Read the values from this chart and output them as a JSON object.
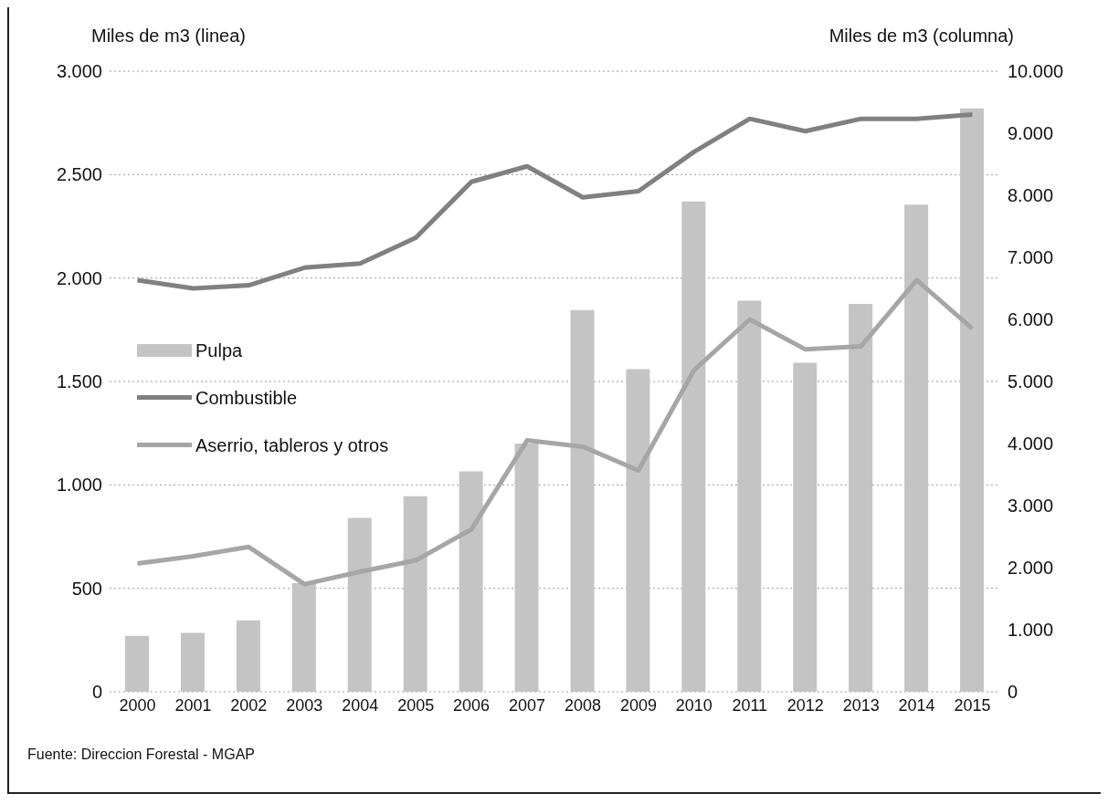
{
  "chart_data": {
    "type": "bar",
    "ylabel": "Miles de m3 (linea)",
    "y2label": "Miles de m3 (columna)",
    "categories": [
      "2000",
      "2001",
      "2002",
      "2003",
      "2004",
      "2005",
      "2006",
      "2007",
      "2008",
      "2009",
      "2010",
      "2011",
      "2012",
      "2013",
      "2014",
      "2015"
    ],
    "series": [
      {
        "name": "Pulpa",
        "axis": "y2",
        "color": "#c4c4c4",
        "values": [
          900,
          950,
          1150,
          1750,
          2800,
          3150,
          3550,
          4000,
          6150,
          5200,
          7900,
          6300,
          5300,
          6250,
          7850,
          9400
        ]
      },
      {
        "name": "Combustible",
        "type": "line",
        "color": "#808080",
        "values": [
          1990,
          1950,
          1965,
          2050,
          2070,
          2195,
          2465,
          2540,
          2390,
          2420,
          2610,
          2770,
          2710,
          2770,
          2770,
          2790
        ]
      },
      {
        "name": "Aserrio, tableros y otros",
        "type": "line",
        "color": "#a6a6a6",
        "values": [
          620,
          655,
          700,
          520,
          580,
          635,
          785,
          1215,
          1185,
          1070,
          1555,
          1800,
          1655,
          1670,
          1990,
          1755
        ]
      }
    ],
    "ylim": [
      0,
      3000
    ],
    "yticks": [
      0,
      500,
      {
        "value": 1000,
        "label": "1.000"
      },
      {
        "value": 1500,
        "label": "1.500"
      },
      {
        "value": 2000,
        "label": "2.000"
      },
      {
        "value": 2500,
        "label": "2.500"
      },
      {
        "value": 3000,
        "label": "3.000"
      }
    ],
    "y2lim": [
      0,
      10000
    ],
    "y2ticks": [
      0,
      {
        "value": 1000,
        "label": "1.000"
      },
      {
        "value": 2000,
        "label": "2.000"
      },
      {
        "value": 3000,
        "label": "3.000"
      },
      {
        "value": 4000,
        "label": "4.000"
      },
      {
        "value": 5000,
        "label": "5.000"
      },
      {
        "value": 6000,
        "label": "6.000"
      },
      {
        "value": 7000,
        "label": "7.000"
      },
      {
        "value": 8000,
        "label": "8.000"
      },
      {
        "value": 9000,
        "label": "9.000"
      },
      {
        "value": 10000,
        "label": "10.000"
      }
    ],
    "grid": "y",
    "legend": "left",
    "annotations": [
      "Fuente: Direccion Forestal - MGAP"
    ]
  }
}
